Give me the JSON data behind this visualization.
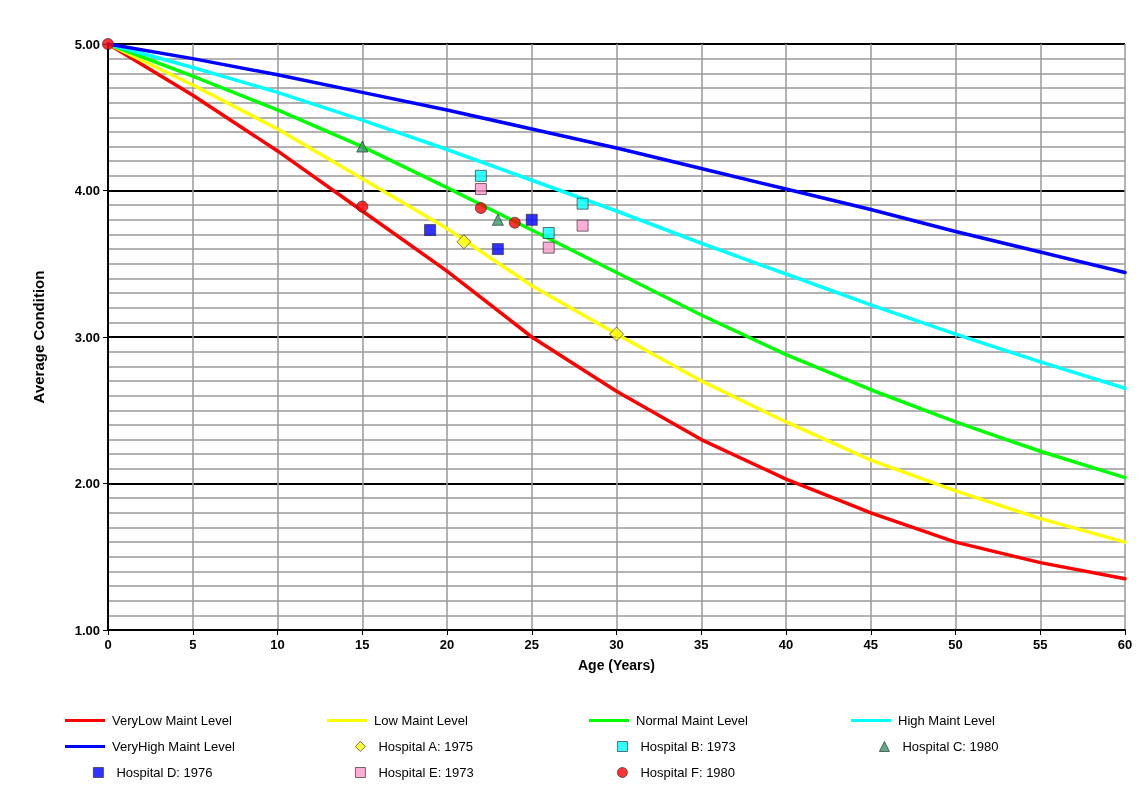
{
  "chart_data": {
    "type": "line",
    "xlabel": "Age (Years)",
    "ylabel": "Average Condition",
    "xlim": [
      0,
      60
    ],
    "xticks": [
      0,
      5,
      10,
      15,
      20,
      25,
      30,
      35,
      40,
      45,
      50,
      55,
      60
    ],
    "ylim": [
      1,
      5
    ],
    "yticks": [
      {
        "value": 1,
        "label": "1.00"
      },
      {
        "value": 2,
        "label": "2.00"
      },
      {
        "value": 3,
        "label": "3.00"
      },
      {
        "value": 4,
        "label": "4.00"
      },
      {
        "value": 5,
        "label": "5.00"
      }
    ],
    "grid": true,
    "legend": "bottom",
    "marker": "none",
    "line_style": "solid",
    "x": [
      0,
      5,
      10,
      15,
      20,
      25,
      30,
      35,
      40,
      45,
      50,
      55,
      60
    ],
    "series": [
      {
        "name": "VeryLow Maint Level",
        "color": "#ff0000",
        "values": [
          5,
          4.65,
          4.27,
          3.86,
          3.45,
          3.0,
          2.63,
          2.3,
          2.03,
          1.8,
          1.6,
          1.46,
          1.35
        ]
      },
      {
        "name": "Low Maint Level",
        "color": "#ffff00",
        "values": [
          5,
          4.72,
          4.42,
          4.08,
          3.74,
          3.35,
          3.02,
          2.7,
          2.42,
          2.16,
          1.95,
          1.76,
          1.6
        ]
      },
      {
        "name": "Normal Maint Level",
        "color": "#00ff00",
        "values": [
          5,
          4.78,
          4.55,
          4.3,
          4.02,
          3.73,
          3.44,
          3.15,
          2.88,
          2.64,
          2.42,
          2.22,
          2.04
        ]
      },
      {
        "name": "High Maint Level",
        "color": "#00ffff",
        "values": [
          5,
          4.84,
          4.67,
          4.48,
          4.28,
          4.07,
          3.86,
          3.64,
          3.43,
          3.22,
          3.02,
          2.83,
          2.65
        ]
      },
      {
        "name": "VeryHigh Maint Level",
        "color": "#0000ff",
        "values": [
          5,
          4.9,
          4.79,
          4.67,
          4.55,
          4.42,
          4.29,
          4.15,
          4.01,
          3.87,
          3.72,
          3.58,
          3.44
        ]
      },
      {
        "name": "Hospital A: 1975",
        "type": "scatter",
        "marker": "diamond",
        "color": "#ffff00",
        "x": [
          21,
          30
        ],
        "values": [
          3.65,
          3.02
        ]
      },
      {
        "name": "Hospital B: 1973",
        "type": "scatter",
        "marker": "square",
        "color": "#00ffff",
        "x": [
          22,
          26,
          28
        ],
        "values": [
          4.1,
          3.71,
          3.91
        ]
      },
      {
        "name": "Hospital C: 1980",
        "type": "scatter",
        "marker": "triangle",
        "color": "#339966",
        "x": [
          15,
          23
        ],
        "values": [
          4.3,
          3.8
        ]
      },
      {
        "name": "Hospital D: 1976",
        "type": "scatter",
        "marker": "square",
        "color": "#0000ff",
        "x": [
          19,
          23,
          25
        ],
        "values": [
          3.73,
          3.6,
          3.8
        ]
      },
      {
        "name": "Hospital E: 1973",
        "type": "scatter",
        "marker": "square",
        "color": "#ff99cc",
        "x": [
          22,
          26,
          28
        ],
        "values": [
          4.01,
          3.61,
          3.76
        ]
      },
      {
        "name": "Hospital F: 1980",
        "type": "scatter",
        "marker": "circle",
        "color": "#ff0000",
        "x": [
          0,
          15,
          22,
          24
        ],
        "values": [
          5,
          3.89,
          3.88,
          3.78
        ]
      }
    ]
  }
}
